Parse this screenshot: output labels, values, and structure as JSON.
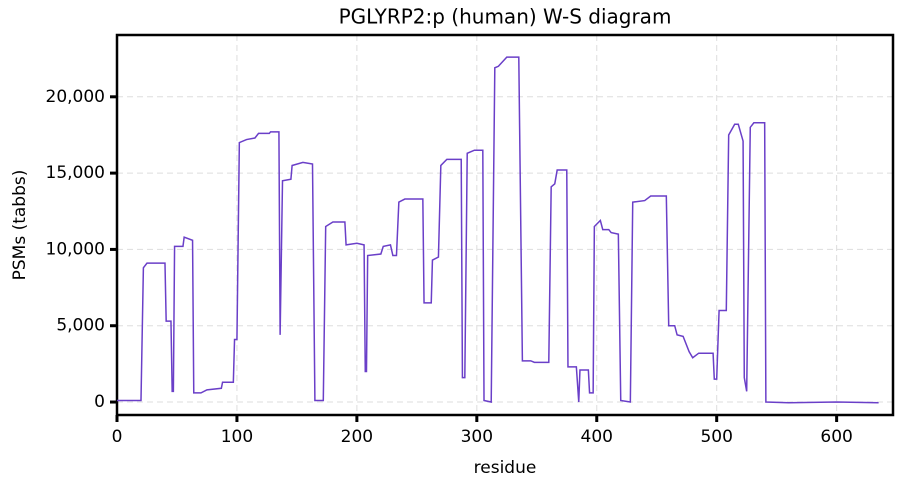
{
  "chart_data": {
    "type": "line",
    "title": "PGLYRP2:p (human) W-S diagram",
    "xlabel": "residue",
    "ylabel": "PSMs (tabbs)",
    "color": "#6a3fc8",
    "grid": true,
    "xlim": [
      0,
      647
    ],
    "ylim": [
      -850,
      24050
    ],
    "xticks": [
      0,
      100,
      200,
      300,
      400,
      500,
      600
    ],
    "yticks": [
      0,
      {
        "value": 5000,
        "label": "5,000"
      },
      {
        "value": 10000,
        "label": "10,000"
      },
      {
        "value": 15000,
        "label": "15,000"
      },
      {
        "value": 20000,
        "label": "20,000"
      }
    ],
    "x": [
      0,
      20,
      22,
      25,
      40,
      41,
      45,
      46,
      47,
      48,
      55,
      56,
      63,
      64,
      70,
      75,
      87,
      88,
      97,
      98,
      100,
      102,
      108,
      115,
      118,
      127,
      128,
      135,
      136,
      138,
      145,
      146,
      155,
      163,
      165,
      172,
      174,
      180,
      190,
      191,
      200,
      206,
      207,
      208,
      209,
      220,
      222,
      228,
      230,
      233,
      235,
      240,
      255,
      256,
      262,
      263,
      268,
      270,
      275,
      287,
      288,
      290,
      292,
      298,
      305,
      306,
      312,
      315,
      318,
      325,
      335,
      338,
      345,
      348,
      360,
      362,
      365,
      367,
      375,
      376,
      383,
      385,
      386,
      393,
      394,
      397,
      398,
      403,
      405,
      410,
      412,
      418,
      420,
      428,
      430,
      440,
      445,
      458,
      460,
      465,
      467,
      472,
      477,
      480,
      485,
      497,
      498,
      500,
      502,
      508,
      510,
      515,
      518,
      522,
      523,
      525,
      528,
      531,
      540,
      541,
      560,
      600,
      635
    ],
    "values": [
      100,
      100,
      8800,
      9100,
      9100,
      5300,
      5300,
      700,
      700,
      10200,
      10200,
      10800,
      10600,
      600,
      600,
      800,
      900,
      1300,
      1300,
      4100,
      4100,
      17000,
      17200,
      17300,
      17600,
      17600,
      17700,
      17700,
      4400,
      14500,
      14600,
      15500,
      15700,
      15600,
      100,
      100,
      11500,
      11800,
      11800,
      10300,
      10400,
      10300,
      2000,
      2000,
      9600,
      9700,
      10200,
      10300,
      9600,
      9600,
      13100,
      13300,
      13300,
      6500,
      6500,
      9300,
      9500,
      15500,
      15900,
      15900,
      1600,
      1600,
      16300,
      16500,
      16500,
      100,
      0,
      21900,
      22000,
      22600,
      22600,
      2700,
      2700,
      2600,
      2600,
      14100,
      14300,
      15200,
      15200,
      2300,
      2300,
      0,
      2100,
      2100,
      600,
      600,
      11500,
      11900,
      11300,
      11300,
      11100,
      11000,
      100,
      0,
      13100,
      13200,
      13500,
      13500,
      5000,
      5000,
      4400,
      4300,
      3300,
      2900,
      3200,
      3200,
      1500,
      1500,
      6000,
      6000,
      17500,
      18200,
      18200,
      17100,
      1600,
      700,
      18000,
      18300,
      18300,
      0,
      -50,
      0,
      -50
    ]
  }
}
